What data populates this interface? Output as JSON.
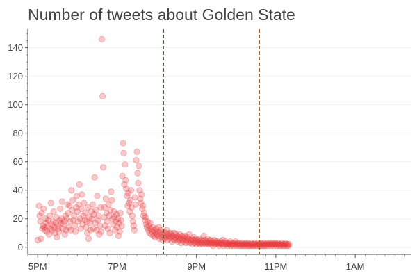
{
  "chart_data": {
    "type": "scatter",
    "title": "Number of tweets about Golden State",
    "xlabel": "",
    "ylabel": "",
    "x_unit": "clock time (5PM to 2AM)",
    "x_ticks": [
      "5PM",
      "7PM",
      "9PM",
      "11PM",
      "1AM"
    ],
    "y_ticks": [
      0,
      20,
      40,
      60,
      80,
      100,
      120,
      140
    ],
    "xlim": [
      "4:45PM",
      "2:25AM"
    ],
    "ylim": [
      -5,
      153
    ],
    "grid": "y-only, light",
    "legend": "none",
    "marker_color": "#e8383d",
    "marker_opacity": 0.28,
    "vlines": [
      {
        "x": "8:10PM",
        "color": "#3f6b3a",
        "style": "dashed"
      },
      {
        "x": "10:35PM",
        "color": "#b85a0e",
        "style": "dashed"
      }
    ],
    "points": [
      [
        "5:00PM",
        5
      ],
      [
        "5:02PM",
        29
      ],
      [
        "5:03PM",
        22
      ],
      [
        "5:04PM",
        18
      ],
      [
        "5:05PM",
        6
      ],
      [
        "5:06PM",
        24
      ],
      [
        "5:07PM",
        13
      ],
      [
        "5:08PM",
        15
      ],
      [
        "5:09PM",
        27
      ],
      [
        "5:10PM",
        14
      ],
      [
        "5:11PM",
        12
      ],
      [
        "5:12PM",
        20
      ],
      [
        "5:13PM",
        17
      ],
      [
        "5:14PM",
        11
      ],
      [
        "5:15PM",
        15
      ],
      [
        "5:16PM",
        19
      ],
      [
        "5:17PM",
        9
      ],
      [
        "5:18PM",
        22
      ],
      [
        "5:19PM",
        13
      ],
      [
        "5:20PM",
        31
      ],
      [
        "5:21PM",
        16
      ],
      [
        "5:22PM",
        12
      ],
      [
        "5:23PM",
        18
      ],
      [
        "5:24PM",
        25
      ],
      [
        "5:25PM",
        14
      ],
      [
        "5:26PM",
        10
      ],
      [
        "5:27PM",
        17
      ],
      [
        "5:28PM",
        21
      ],
      [
        "5:29PM",
        7
      ],
      [
        "5:30PM",
        15
      ],
      [
        "5:31PM",
        13
      ],
      [
        "5:32PM",
        11
      ],
      [
        "5:33PM",
        19
      ],
      [
        "5:34PM",
        27
      ],
      [
        "5:35PM",
        17
      ],
      [
        "5:36PM",
        20
      ],
      [
        "5:37PM",
        32
      ],
      [
        "5:38PM",
        13
      ],
      [
        "5:39PM",
        16
      ],
      [
        "5:40PM",
        18
      ],
      [
        "5:41PM",
        9
      ],
      [
        "5:42PM",
        22
      ],
      [
        "5:43PM",
        12
      ],
      [
        "5:44PM",
        20
      ],
      [
        "5:45PM",
        30
      ],
      [
        "5:46PM",
        24
      ],
      [
        "5:47PM",
        14
      ],
      [
        "5:48PM",
        29
      ],
      [
        "5:49PM",
        18
      ],
      [
        "5:50PM",
        12
      ],
      [
        "5:51PM",
        40
      ],
      [
        "5:52PM",
        26
      ],
      [
        "5:53PM",
        33
      ],
      [
        "5:54PM",
        19
      ],
      [
        "5:55PM",
        22
      ],
      [
        "5:56PM",
        15
      ],
      [
        "5:57PM",
        11
      ],
      [
        "5:58PM",
        28
      ],
      [
        "5:59PM",
        36
      ],
      [
        "6:00PM",
        25
      ],
      [
        "6:01PM",
        18
      ],
      [
        "6:02PM",
        30
      ],
      [
        "6:03PM",
        44
      ],
      [
        "6:04PM",
        20
      ],
      [
        "6:05PM",
        13
      ],
      [
        "6:06PM",
        27
      ],
      [
        "6:07PM",
        37
      ],
      [
        "6:08PM",
        16
      ],
      [
        "6:09PM",
        22
      ],
      [
        "6:10PM",
        31
      ],
      [
        "6:11PM",
        19
      ],
      [
        "6:12PM",
        24
      ],
      [
        "6:13PM",
        14
      ],
      [
        "6:14PM",
        18
      ],
      [
        "6:15PM",
        10
      ],
      [
        "6:16PM",
        28
      ],
      [
        "6:17PM",
        6
      ],
      [
        "6:18PM",
        21
      ],
      [
        "6:19PM",
        17
      ],
      [
        "6:20PM",
        12
      ],
      [
        "6:21PM",
        25
      ],
      [
        "6:22PM",
        20
      ],
      [
        "6:23PM",
        30
      ],
      [
        "6:24PM",
        13
      ],
      [
        "6:25PM",
        23
      ],
      [
        "6:26PM",
        49
      ],
      [
        "6:27PM",
        17
      ],
      [
        "6:28PM",
        26
      ],
      [
        "6:29PM",
        12
      ],
      [
        "6:30PM",
        36
      ],
      [
        "6:31PM",
        19
      ],
      [
        "6:32PM",
        22
      ],
      [
        "6:33PM",
        9
      ],
      [
        "6:34PM",
        15
      ],
      [
        "6:35PM",
        28
      ],
      [
        "6:36PM",
        11
      ],
      [
        "6:37PM",
        146
      ],
      [
        "6:38PM",
        106
      ],
      [
        "6:39PM",
        56
      ],
      [
        "6:40PM",
        21
      ],
      [
        "6:41PM",
        28
      ],
      [
        "6:42PM",
        15
      ],
      [
        "6:43PM",
        34
      ],
      [
        "6:44PM",
        24
      ],
      [
        "6:45PM",
        18
      ],
      [
        "6:46PM",
        13
      ],
      [
        "6:47PM",
        30
      ],
      [
        "6:48PM",
        22
      ],
      [
        "6:49PM",
        10
      ],
      [
        "6:50PM",
        26
      ],
      [
        "6:51PM",
        39
      ],
      [
        "6:52PM",
        33
      ],
      [
        "6:53PM",
        20
      ],
      [
        "6:54PM",
        16
      ],
      [
        "6:55PM",
        25
      ],
      [
        "6:56PM",
        21
      ],
      [
        "6:57PM",
        12
      ],
      [
        "6:58PM",
        18
      ],
      [
        "6:59PM",
        23
      ],
      [
        "7:00PM",
        14
      ],
      [
        "7:01PM",
        20
      ],
      [
        "7:02PM",
        8
      ],
      [
        "7:03PM",
        17
      ],
      [
        "7:04PM",
        11
      ],
      [
        "7:05PM",
        24
      ],
      [
        "7:06PM",
        19
      ],
      [
        "7:07PM",
        15
      ],
      [
        "7:08PM",
        50
      ],
      [
        "7:09PM",
        73
      ],
      [
        "7:10PM",
        66
      ],
      [
        "7:11PM",
        44
      ],
      [
        "7:12PM",
        58
      ],
      [
        "7:13PM",
        47
      ],
      [
        "7:14PM",
        41
      ],
      [
        "7:15PM",
        36
      ],
      [
        "7:16PM",
        29
      ],
      [
        "7:17PM",
        38
      ],
      [
        "7:18PM",
        31
      ],
      [
        "7:19PM",
        25
      ],
      [
        "7:20PM",
        33
      ],
      [
        "7:21PM",
        40
      ],
      [
        "7:22PM",
        28
      ],
      [
        "7:23PM",
        22
      ],
      [
        "7:24PM",
        18
      ],
      [
        "7:25PM",
        15
      ],
      [
        "7:26PM",
        12
      ],
      [
        "7:27PM",
        35
      ],
      [
        "7:28PM",
        30
      ],
      [
        "7:29PM",
        61
      ],
      [
        "7:30PM",
        67
      ],
      [
        "7:31PM",
        52
      ],
      [
        "7:32PM",
        45
      ],
      [
        "7:33PM",
        57
      ],
      [
        "7:34PM",
        40
      ],
      [
        "7:35PM",
        34
      ],
      [
        "7:36PM",
        31
      ],
      [
        "7:37PM",
        37
      ],
      [
        "7:38PM",
        27
      ],
      [
        "7:39PM",
        29
      ],
      [
        "7:40PM",
        22
      ],
      [
        "7:41PM",
        24
      ],
      [
        "7:42PM",
        19
      ],
      [
        "7:43PM",
        21
      ],
      [
        "7:44PM",
        16
      ],
      [
        "7:45PM",
        14
      ],
      [
        "7:46PM",
        18
      ],
      [
        "7:47PM",
        12
      ],
      [
        "7:48PM",
        15
      ],
      [
        "7:49PM",
        10
      ],
      [
        "7:50PM",
        17
      ],
      [
        "7:51PM",
        13
      ],
      [
        "7:52PM",
        9
      ],
      [
        "7:53PM",
        11
      ],
      [
        "7:54PM",
        14
      ],
      [
        "7:55PM",
        8
      ],
      [
        "7:56PM",
        12
      ],
      [
        "7:57PM",
        7
      ],
      [
        "7:58PM",
        10
      ],
      [
        "7:59PM",
        13
      ],
      [
        "8:00PM",
        9
      ],
      [
        "8:01PM",
        11
      ],
      [
        "8:02PM",
        8
      ],
      [
        "8:03PM",
        14
      ],
      [
        "8:04PM",
        6
      ],
      [
        "8:05PM",
        10
      ],
      [
        "8:06PM",
        12
      ],
      [
        "8:07PM",
        7
      ],
      [
        "8:08PM",
        9
      ],
      [
        "8:09PM",
        5
      ],
      [
        "8:10PM",
        11
      ],
      [
        "8:11PM",
        8
      ],
      [
        "8:12PM",
        6
      ],
      [
        "8:13PM",
        10
      ],
      [
        "8:14PM",
        7
      ],
      [
        "8:15PM",
        12
      ],
      [
        "8:16PM",
        5
      ],
      [
        "8:17PM",
        9
      ],
      [
        "8:18PM",
        8
      ],
      [
        "8:19PM",
        6
      ],
      [
        "8:20PM",
        10
      ],
      [
        "8:21PM",
        7
      ],
      [
        "8:22PM",
        9
      ],
      [
        "8:23PM",
        4
      ],
      [
        "8:24PM",
        8
      ],
      [
        "8:25PM",
        6
      ],
      [
        "8:26PM",
        10
      ],
      [
        "8:27PM",
        5
      ],
      [
        "8:28PM",
        7
      ],
      [
        "8:29PM",
        9
      ],
      [
        "8:30PM",
        6
      ],
      [
        "8:31PM",
        8
      ],
      [
        "8:32PM",
        4
      ],
      [
        "8:33PM",
        7
      ],
      [
        "8:34PM",
        5
      ],
      [
        "8:35PM",
        9
      ],
      [
        "8:36PM",
        6
      ],
      [
        "8:37PM",
        3
      ],
      [
        "8:38PM",
        8
      ],
      [
        "8:39PM",
        5
      ],
      [
        "8:40PM",
        7
      ],
      [
        "8:41PM",
        4
      ],
      [
        "8:42PM",
        6
      ],
      [
        "8:43PM",
        8
      ],
      [
        "8:44PM",
        3
      ],
      [
        "8:45PM",
        5
      ],
      [
        "8:46PM",
        7
      ],
      [
        "8:47PM",
        4
      ],
      [
        "8:48PM",
        6
      ],
      [
        "8:49PM",
        9
      ],
      [
        "8:50PM",
        3
      ],
      [
        "8:51PM",
        5
      ],
      [
        "8:52PM",
        4
      ],
      [
        "8:53PM",
        6
      ],
      [
        "8:54PM",
        2
      ],
      [
        "8:55PM",
        5
      ],
      [
        "8:56PM",
        7
      ],
      [
        "8:57PM",
        3
      ],
      [
        "8:58PM",
        4
      ],
      [
        "8:59PM",
        6
      ],
      [
        "9:00PM",
        2
      ],
      [
        "9:01PM",
        4
      ],
      [
        "9:02PM",
        5
      ],
      [
        "9:03PM",
        3
      ],
      [
        "9:04PM",
        6
      ],
      [
        "9:05PM",
        2
      ],
      [
        "9:06PM",
        4
      ],
      [
        "9:07PM",
        3
      ],
      [
        "9:08PM",
        5
      ],
      [
        "9:09PM",
        2
      ],
      [
        "9:10PM",
        4
      ],
      [
        "9:11PM",
        8
      ],
      [
        "9:12PM",
        3
      ],
      [
        "9:13PM",
        5
      ],
      [
        "9:14PM",
        2
      ],
      [
        "9:15PM",
        4
      ],
      [
        "9:16PM",
        3
      ],
      [
        "9:17PM",
        6
      ],
      [
        "9:18PM",
        2
      ],
      [
        "9:19PM",
        4
      ],
      [
        "9:20PM",
        3
      ],
      [
        "9:21PM",
        5
      ],
      [
        "9:22PM",
        2
      ],
      [
        "9:23PM",
        3
      ],
      [
        "9:24PM",
        4
      ],
      [
        "9:25PM",
        1
      ],
      [
        "9:26PM",
        3
      ],
      [
        "9:27PM",
        5
      ],
      [
        "9:28PM",
        2
      ],
      [
        "9:29PM",
        4
      ],
      [
        "9:30PM",
        3
      ],
      [
        "9:31PM",
        2
      ],
      [
        "9:32PM",
        4
      ],
      [
        "9:33PM",
        3
      ],
      [
        "9:34PM",
        1
      ],
      [
        "9:35PM",
        3
      ],
      [
        "9:36PM",
        2
      ],
      [
        "9:37PM",
        4
      ],
      [
        "9:38PM",
        3
      ],
      [
        "9:39PM",
        2
      ],
      [
        "9:40PM",
        5
      ],
      [
        "9:41PM",
        1
      ],
      [
        "9:42PM",
        3
      ],
      [
        "9:43PM",
        2
      ],
      [
        "9:44PM",
        4
      ],
      [
        "9:45PM",
        2
      ],
      [
        "9:46PM",
        3
      ],
      [
        "9:47PM",
        1
      ],
      [
        "9:48PM",
        2
      ],
      [
        "9:49PM",
        3
      ],
      [
        "9:50PM",
        2
      ],
      [
        "9:51PM",
        4
      ],
      [
        "9:52PM",
        1
      ],
      [
        "9:53PM",
        2
      ],
      [
        "9:54PM",
        3
      ],
      [
        "9:55PM",
        2
      ],
      [
        "9:56PM",
        1
      ],
      [
        "9:57PM",
        3
      ],
      [
        "9:58PM",
        2
      ],
      [
        "9:59PM",
        4
      ],
      [
        "10:00PM",
        1
      ],
      [
        "10:01PM",
        2
      ],
      [
        "10:02PM",
        3
      ],
      [
        "10:03PM",
        2
      ],
      [
        "10:04PM",
        1
      ],
      [
        "10:05PM",
        3
      ],
      [
        "10:06PM",
        2
      ],
      [
        "10:07PM",
        1
      ],
      [
        "10:08PM",
        2
      ],
      [
        "10:09PM",
        3
      ],
      [
        "10:10PM",
        1
      ],
      [
        "10:11PM",
        2
      ],
      [
        "10:12PM",
        2
      ],
      [
        "10:13PM",
        1
      ],
      [
        "10:14PM",
        3
      ],
      [
        "10:15PM",
        2
      ],
      [
        "10:16PM",
        1
      ],
      [
        "10:17PM",
        2
      ],
      [
        "10:18PM",
        3
      ],
      [
        "10:19PM",
        1
      ],
      [
        "10:20PM",
        2
      ],
      [
        "10:21PM",
        1
      ],
      [
        "10:22PM",
        2
      ],
      [
        "10:23PM",
        3
      ],
      [
        "10:24PM",
        1
      ],
      [
        "10:25PM",
        2
      ],
      [
        "10:26PM",
        1
      ],
      [
        "10:27PM",
        2
      ],
      [
        "10:28PM",
        3
      ],
      [
        "10:29PM",
        1
      ],
      [
        "10:30PM",
        2
      ],
      [
        "10:31PM",
        2
      ],
      [
        "10:32PM",
        1
      ],
      [
        "10:33PM",
        3
      ],
      [
        "10:34PM",
        2
      ],
      [
        "10:35PM",
        1
      ],
      [
        "10:36PM",
        2
      ],
      [
        "10:37PM",
        1
      ],
      [
        "10:38PM",
        3
      ],
      [
        "10:39PM",
        2
      ],
      [
        "10:40PM",
        1
      ],
      [
        "10:41PM",
        2
      ],
      [
        "10:42PM",
        3
      ],
      [
        "10:43PM",
        1
      ],
      [
        "10:44PM",
        2
      ],
      [
        "10:45PM",
        1
      ],
      [
        "10:46PM",
        2
      ],
      [
        "10:47PM",
        3
      ],
      [
        "10:48PM",
        2
      ],
      [
        "10:49PM",
        1
      ],
      [
        "10:50PM",
        2
      ],
      [
        "10:51PM",
        3
      ],
      [
        "10:52PM",
        2
      ],
      [
        "10:53PM",
        1
      ],
      [
        "10:54PM",
        2
      ],
      [
        "10:55PM",
        3
      ],
      [
        "10:56PM",
        2
      ],
      [
        "10:57PM",
        1
      ],
      [
        "10:58PM",
        2
      ],
      [
        "10:59PM",
        3
      ],
      [
        "11:00PM",
        2
      ],
      [
        "11:01PM",
        1
      ],
      [
        "11:02PM",
        2
      ],
      [
        "11:03PM",
        3
      ],
      [
        "11:04PM",
        2
      ],
      [
        "11:05PM",
        1
      ],
      [
        "11:06PM",
        2
      ],
      [
        "11:07PM",
        1
      ],
      [
        "11:08PM",
        2
      ],
      [
        "11:09PM",
        3
      ],
      [
        "11:10PM",
        2
      ],
      [
        "11:11PM",
        1
      ],
      [
        "11:12PM",
        2
      ],
      [
        "11:13PM",
        1
      ],
      [
        "11:14PM",
        2
      ],
      [
        "11:15PM",
        3
      ],
      [
        "11:16PM",
        2
      ],
      [
        "11:17PM",
        1
      ],
      [
        "11:18PM",
        2
      ],
      [
        "11:19PM",
        1
      ],
      [
        "11:20PM",
        2
      ]
    ]
  }
}
